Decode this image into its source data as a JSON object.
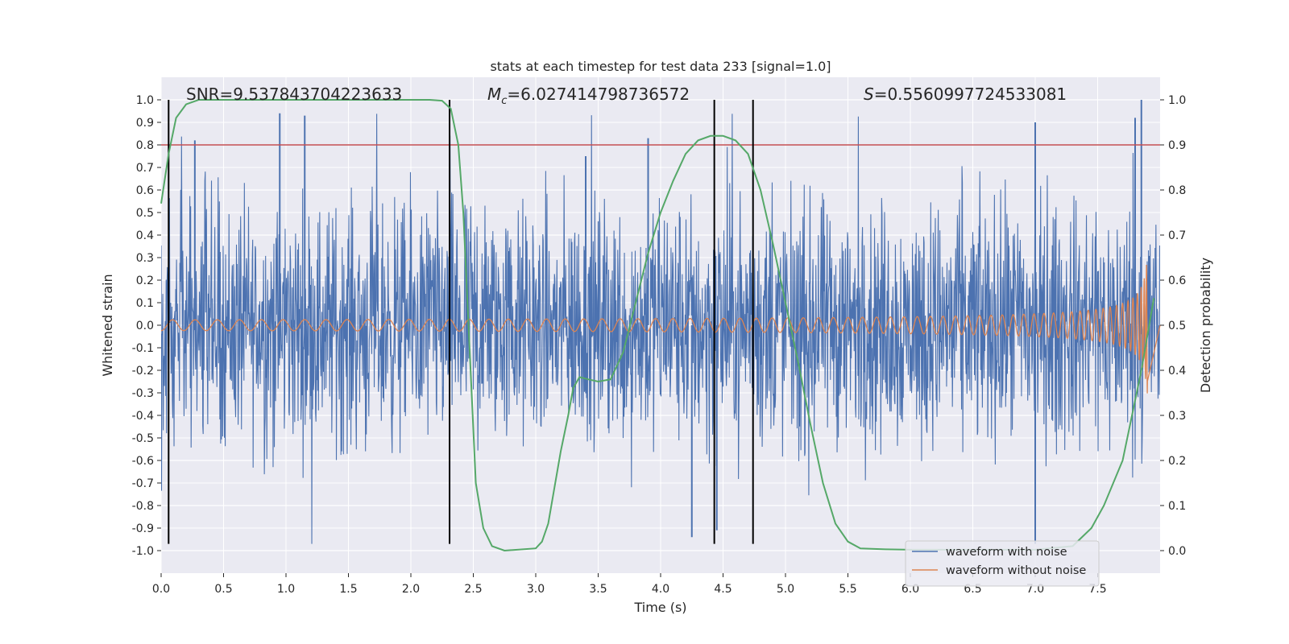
{
  "chart_data": {
    "type": "line",
    "title": "stats at each timestep for test data 233 [signal=1.0]",
    "xlabel": "Time (s)",
    "ylabel": "Whitened strain",
    "ylabel_right": "Detection probability",
    "xlim": [
      0.0,
      8.0
    ],
    "ylim": [
      -1.1,
      1.1
    ],
    "ylim_right": [
      -0.05,
      1.05
    ],
    "x_ticks": [
      "0.0",
      "0.5",
      "1.0",
      "1.5",
      "2.0",
      "2.5",
      "3.0",
      "3.5",
      "4.0",
      "4.5",
      "5.0",
      "5.5",
      "6.0",
      "6.5",
      "7.0",
      "7.5"
    ],
    "y_ticks": [
      "1.0",
      "0.9",
      "0.8",
      "0.7",
      "0.6",
      "0.5",
      "0.4",
      "0.3",
      "0.2",
      "0.1",
      "0.0",
      "-0.1",
      "-0.2",
      "-0.3",
      "-0.4",
      "-0.5",
      "-0.6",
      "-0.7",
      "-0.8",
      "-0.9",
      "-1.0"
    ],
    "y_ticks_right": [
      "1.0",
      "0.9",
      "0.8",
      "0.7",
      "0.6",
      "0.5",
      "0.4",
      "0.3",
      "0.2",
      "0.1",
      "0.0"
    ],
    "grid": true,
    "annotations": {
      "snr": "SNR=9.537843704223633",
      "mc_symbol": "M",
      "mc_sub": "c",
      "mc_value": "=6.027414798736572",
      "s_symbol": "S",
      "s_value": "=0.5560997724533081"
    },
    "threshold": {
      "y": 0.8,
      "color": "#c44e52"
    },
    "vertical_lines": [
      0.06,
      2.31,
      4.43,
      4.74
    ],
    "detection_probability": {
      "name": "detection probability",
      "color": "#55a868",
      "x": [
        0.0,
        0.06,
        0.12,
        0.2,
        0.3,
        0.45,
        0.7,
        1.0,
        1.5,
        2.0,
        2.15,
        2.25,
        2.32,
        2.38,
        2.42,
        2.47,
        2.52,
        2.58,
        2.65,
        2.75,
        3.0,
        3.05,
        3.1,
        3.15,
        3.2,
        3.26,
        3.3,
        3.35,
        3.42,
        3.5,
        3.6,
        3.7,
        3.8,
        3.9,
        4.0,
        4.1,
        4.2,
        4.3,
        4.4,
        4.5,
        4.6,
        4.7,
        4.8,
        4.9,
        5.0,
        5.1,
        5.2,
        5.3,
        5.4,
        5.5,
        5.6,
        5.8,
        6.0,
        6.5,
        7.0,
        7.3,
        7.45,
        7.55,
        7.7,
        7.85,
        7.95
      ],
      "y": [
        0.77,
        0.88,
        0.96,
        0.99,
        1.0,
        1.0,
        1.0,
        1.0,
        1.0,
        1.0,
        1.0,
        0.998,
        0.98,
        0.9,
        0.75,
        0.45,
        0.15,
        0.05,
        0.01,
        0.0,
        0.005,
        0.02,
        0.06,
        0.14,
        0.22,
        0.3,
        0.36,
        0.385,
        0.38,
        0.375,
        0.38,
        0.44,
        0.55,
        0.66,
        0.75,
        0.82,
        0.88,
        0.91,
        0.92,
        0.92,
        0.91,
        0.88,
        0.8,
        0.68,
        0.55,
        0.42,
        0.28,
        0.15,
        0.06,
        0.02,
        0.005,
        0.003,
        0.002,
        0.002,
        0.002,
        0.01,
        0.05,
        0.1,
        0.2,
        0.4,
        0.56
      ]
    },
    "series": [
      {
        "name": "waveform with noise",
        "color": "#4c72b0",
        "amplitude": 0.5,
        "peaks": [
          [
            0.27,
            0.82
          ],
          [
            0.95,
            0.94
          ],
          [
            1.15,
            0.93
          ],
          [
            3.4,
            0.75
          ],
          [
            3.9,
            0.83
          ],
          [
            7.0,
            0.9
          ],
          [
            7.8,
            0.92
          ],
          [
            7.85,
            1.0
          ]
        ],
        "troughs": [
          [
            4.25,
            -0.94
          ],
          [
            4.45,
            -0.91
          ],
          [
            7.0,
            -0.97
          ]
        ]
      },
      {
        "name": "waveform without noise",
        "color": "#dd8452",
        "amplitude_start": 0.012,
        "amplitude_end": 0.33,
        "t_end": 7.9
      }
    ],
    "legend": {
      "placement": "lower-right",
      "entries": [
        "waveform with noise",
        "waveform without noise"
      ]
    }
  }
}
